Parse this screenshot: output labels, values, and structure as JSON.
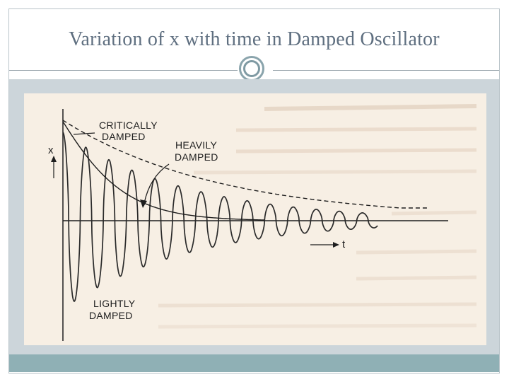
{
  "slide": {
    "title": "Variation of x with time in Damped Oscillator"
  },
  "figure": {
    "labels": {
      "critically": "CRITICALLY",
      "damped_1": "DAMPED",
      "heavily": "HEAVILY",
      "damped_2": "DAMPED",
      "lightly": "LIGHTLY",
      "damped_3": "DAMPED",
      "x_axis_var": "x",
      "t_axis_var": "t"
    },
    "curves": [
      "critically damped",
      "heavily damped",
      "lightly damped"
    ]
  },
  "colors": {
    "title": "#5f6f80",
    "gray_band": "#ccd5da",
    "teal_band": "#8fb0b5",
    "paper": "#f7efe4",
    "ink": "#1e1e1e"
  }
}
